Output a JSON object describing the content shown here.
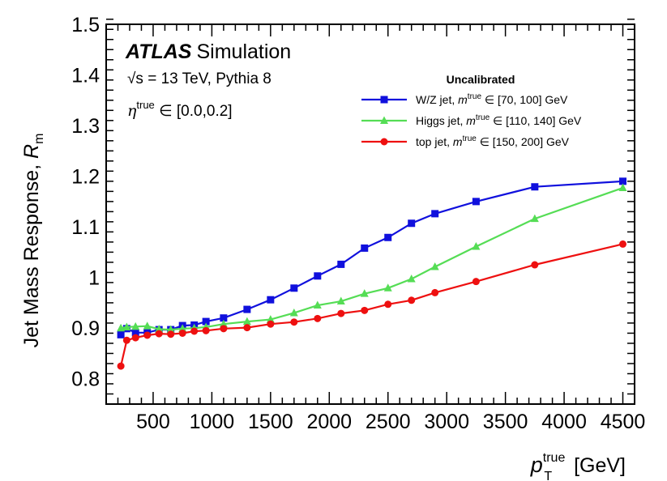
{
  "chart_data": {
    "type": "line",
    "title": "",
    "experiment": "ATLAS",
    "experiment_tag": "Simulation",
    "energy_label": "√s = 13 TeV, Pythia 8",
    "eta_label_symbol": "η",
    "eta_label_sup": "true",
    "eta_label_range": " ∈ [0.0,0.2]",
    "xlabel_symbol": "p",
    "xlabel_sup": "true",
    "xlabel_sub": "T",
    "xlabel_unit": " [GeV]",
    "ylabel_main": "Jet Mass Response, ",
    "ylabel_symbol": "R",
    "ylabel_sub": "m",
    "xlim": [
      100,
      4600
    ],
    "ylim": [
      0.75,
      1.5
    ],
    "xticks": [
      500,
      1000,
      1500,
      2000,
      2500,
      3000,
      3500,
      4000,
      4500
    ],
    "xtick_labels": [
      "500",
      "1000",
      "1500",
      "2000",
      "2500",
      "3000",
      "3500",
      "4000",
      "4500"
    ],
    "yticks": [
      0.8,
      0.9,
      1.0,
      1.1,
      1.2,
      1.3,
      1.4,
      1.5
    ],
    "ytick_labels": [
      "0.8",
      "0.9",
      "1",
      "1.1",
      "1.2",
      "1.3",
      "1.4",
      "1.5"
    ],
    "legend_title": "Uncalibrated",
    "legend_position": "top-right",
    "series": [
      {
        "name": "W/Z jet",
        "label_prefix": "W/Z jet, ",
        "label_sym": "m",
        "label_sup": "true",
        "label_suffix": " ∈ [70, 100] GeV",
        "color": "#1010dd",
        "marker": "square",
        "x": [
          225,
          275,
          350,
          450,
          550,
          650,
          750,
          850,
          950,
          1100,
          1300,
          1500,
          1700,
          1900,
          2100,
          2300,
          2500,
          2700,
          2900,
          3250,
          3750,
          4500
        ],
        "y": [
          0.887,
          0.899,
          0.891,
          0.891,
          0.897,
          0.897,
          0.905,
          0.906,
          0.913,
          0.92,
          0.937,
          0.956,
          0.979,
          1.003,
          1.026,
          1.058,
          1.079,
          1.107,
          1.126,
          1.15,
          1.179,
          1.19
        ]
      },
      {
        "name": "Higgs jet",
        "label_prefix": "Higgs jet, ",
        "label_sym": "m",
        "label_sup": "true",
        "label_suffix": " ∈ [110, 140] GeV",
        "color": "#55dd55",
        "marker": "triangle",
        "x": [
          225,
          275,
          350,
          450,
          550,
          650,
          750,
          850,
          950,
          1100,
          1300,
          1500,
          1700,
          1900,
          2100,
          2300,
          2500,
          2700,
          2900,
          3250,
          3750,
          4500
        ],
        "y": [
          0.9,
          0.902,
          0.903,
          0.904,
          0.898,
          0.897,
          0.899,
          0.9,
          0.902,
          0.908,
          0.913,
          0.917,
          0.93,
          0.945,
          0.953,
          0.968,
          0.979,
          0.997,
          1.021,
          1.061,
          1.116,
          1.177
        ]
      },
      {
        "name": "top jet",
        "label_prefix": "top jet, ",
        "label_sym": "m",
        "label_sup": "true",
        "label_suffix": " ∈ [150, 200] GeV",
        "color": "#ee1010",
        "marker": "circle",
        "x": [
          225,
          275,
          350,
          450,
          550,
          650,
          750,
          850,
          950,
          1100,
          1300,
          1500,
          1700,
          1900,
          2100,
          2300,
          2500,
          2700,
          2900,
          3250,
          3750,
          4500
        ],
        "y": [
          0.825,
          0.876,
          0.881,
          0.886,
          0.889,
          0.888,
          0.89,
          0.894,
          0.895,
          0.899,
          0.901,
          0.908,
          0.912,
          0.919,
          0.929,
          0.935,
          0.947,
          0.955,
          0.97,
          0.992,
          1.025,
          1.066
        ]
      }
    ]
  }
}
